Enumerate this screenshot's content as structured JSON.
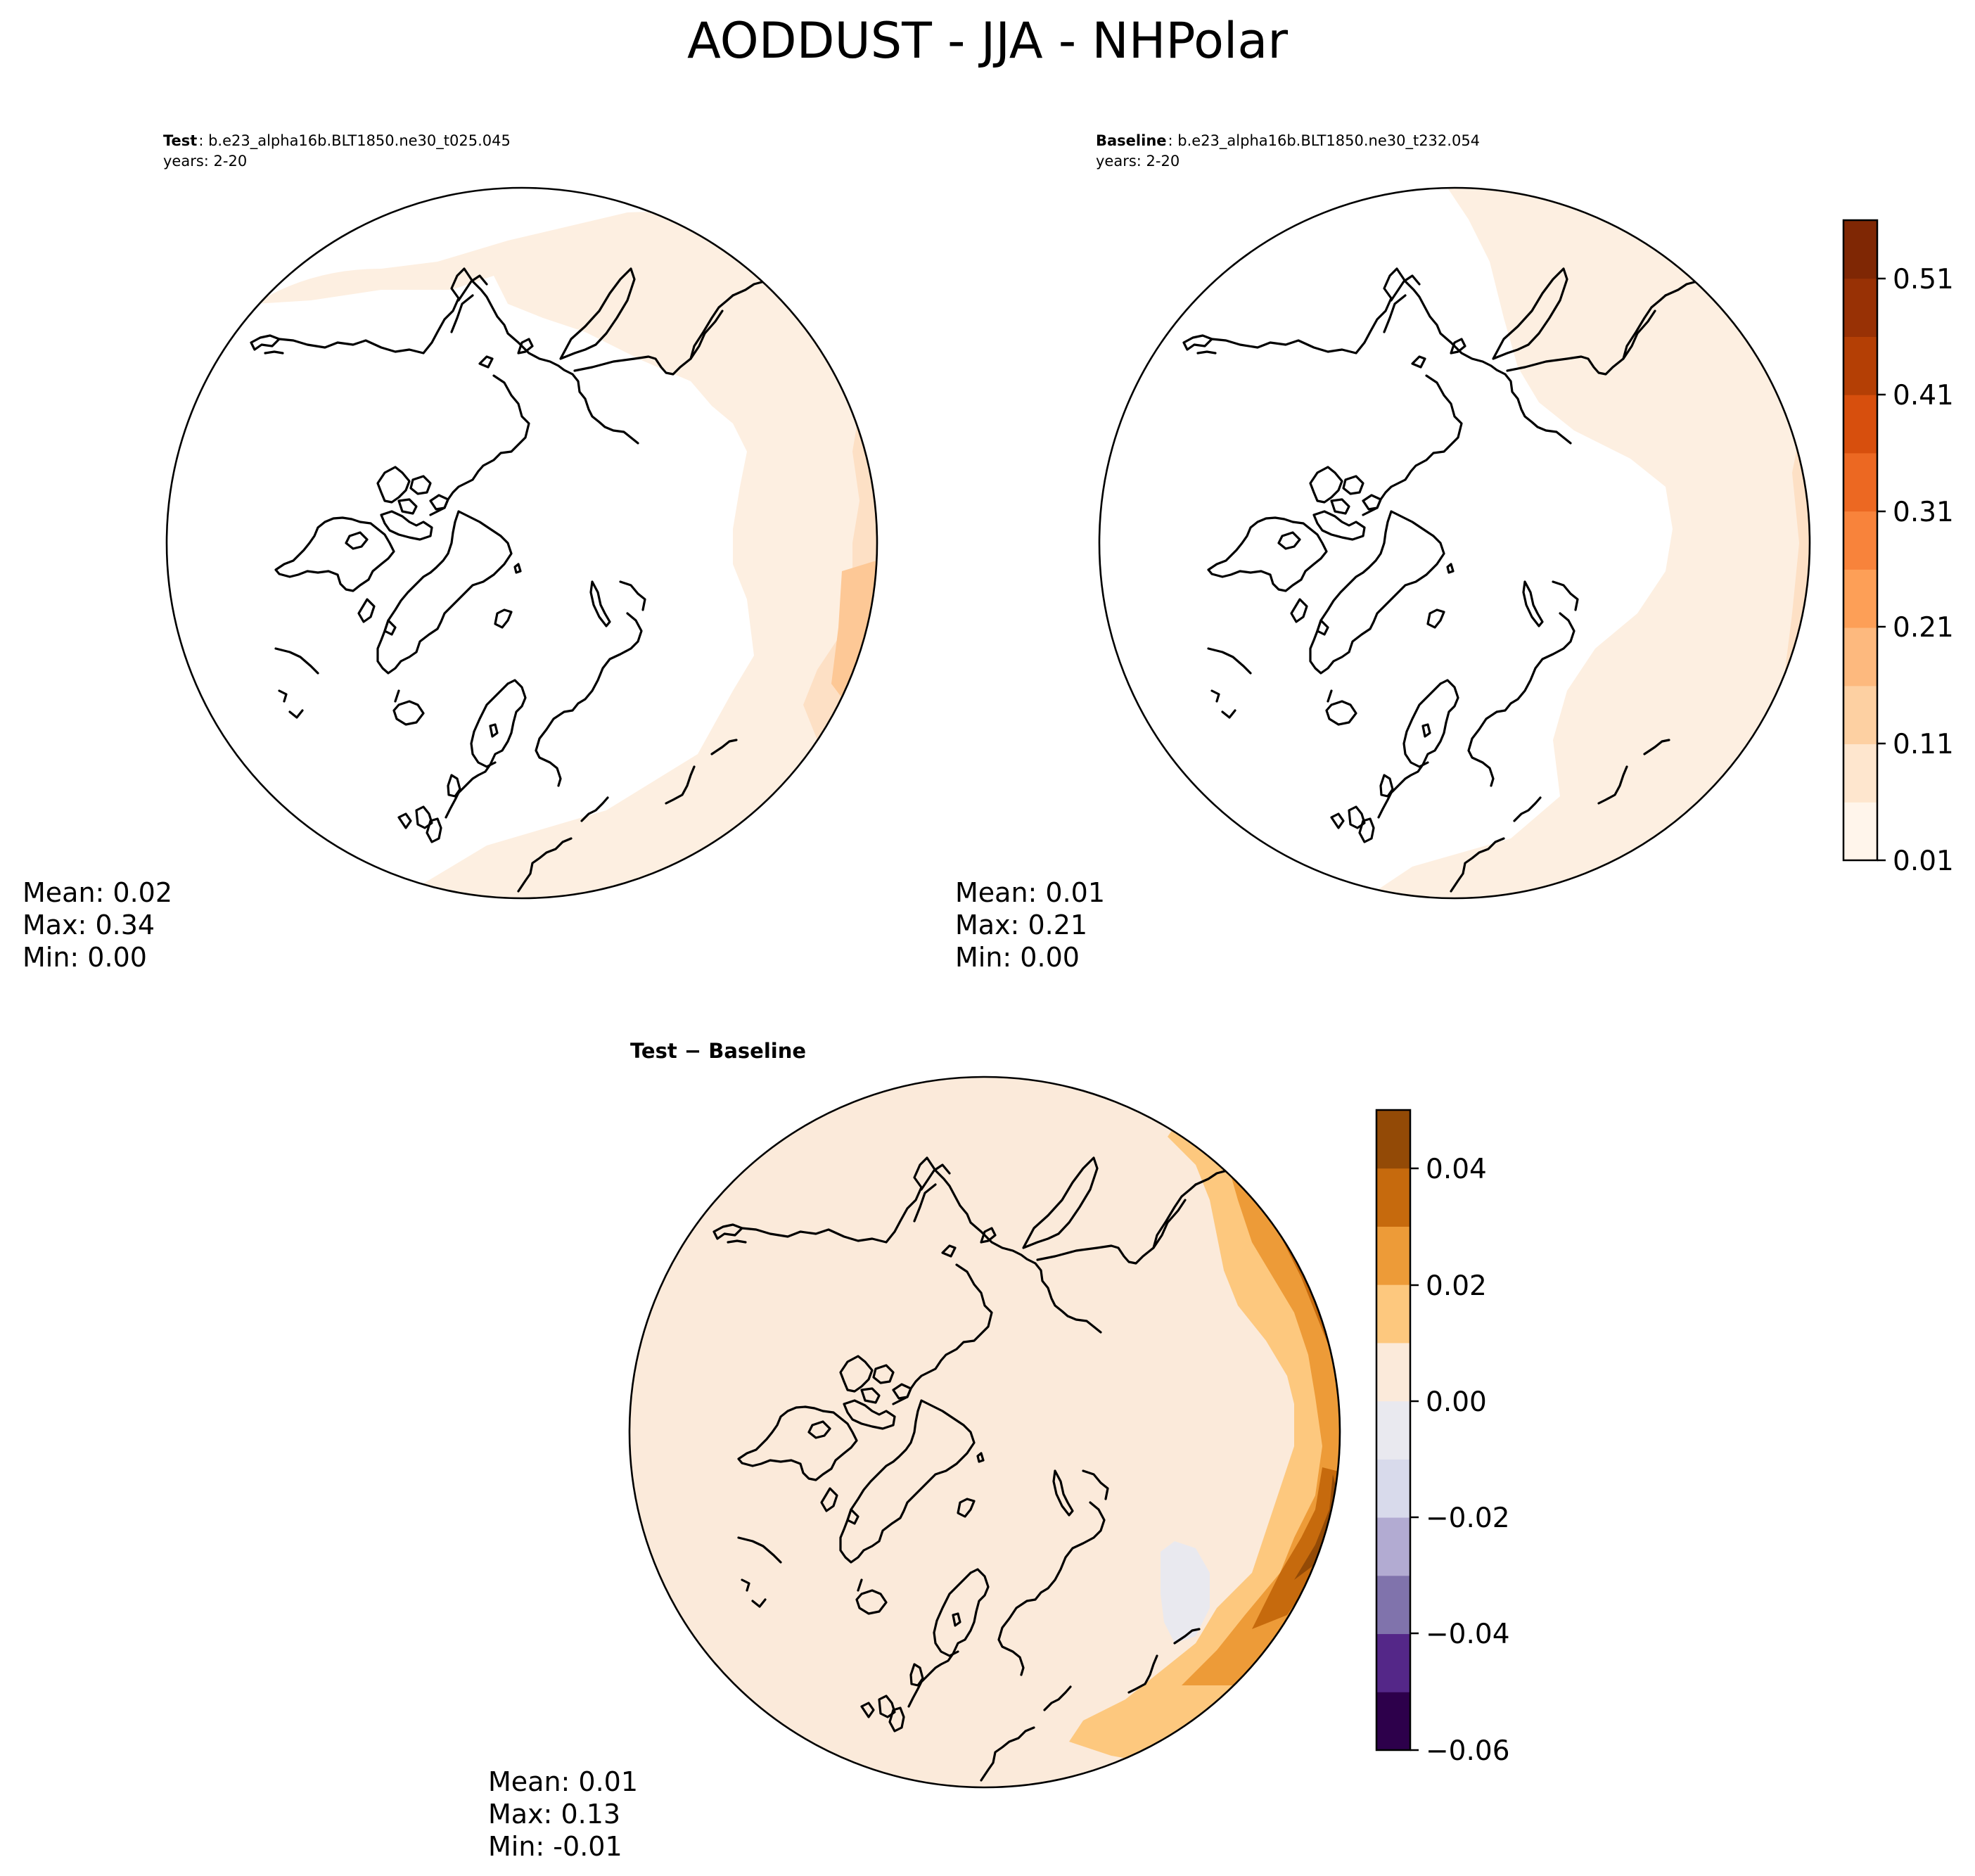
{
  "figure": {
    "title": "AODDUST - JJA - NHPolar"
  },
  "panels": {
    "test": {
      "header_bold": "Test",
      "header_text": ": b.e23_alpha16b.BLT1850.ne30_t025.045",
      "years": "years: 2-20",
      "mean": "Mean:  0.02",
      "max": "Max:  0.34",
      "min": "Min:  0.00"
    },
    "baseline": {
      "header_bold": "Baseline",
      "header_text": ": b.e23_alpha16b.BLT1850.ne30_t232.054",
      "years": "years: 2-20",
      "mean": "Mean:  0.01",
      "max": "Max:  0.21",
      "min": "Min:  0.00"
    },
    "diff": {
      "header": "Test − Baseline",
      "mean": "Mean:  0.01",
      "max": "Max:  0.13",
      "min": "Min: -0.01"
    }
  },
  "colorbars": {
    "main": {
      "ticks": [
        "0.01",
        "0.11",
        "0.21",
        "0.31",
        "0.41",
        "0.51"
      ],
      "colors": [
        "#fff5eb",
        "#fee6ce",
        "#fdd0a2",
        "#fdb97e",
        "#fd9f57",
        "#f8833b",
        "#ec6822",
        "#d74f0d",
        "#b43f05",
        "#983105",
        "#7f2704"
      ]
    },
    "diff": {
      "ticks": [
        "−0.06",
        "−0.04",
        "−0.02",
        "0.00",
        "0.02",
        "0.04"
      ],
      "colors": [
        "#2d004b",
        "#542788",
        "#8073ac",
        "#b2abd2",
        "#d8daeb",
        "#e9e9ef",
        "#fbeada",
        "#fdc87e",
        "#ed9b38",
        "#c66a0d",
        "#934a06"
      ]
    }
  },
  "chart_data": [
    {
      "type": "heatmap",
      "panel": "Test",
      "projection": "north polar stereographic",
      "variable": "AODDUST",
      "season": "JJA",
      "case": "b.e23_alpha16b.BLT1850.ne30_t025.045",
      "years": "2-20",
      "mean": 0.02,
      "max": 0.34,
      "min": 0.0,
      "levels": [
        0.01,
        0.06,
        0.11,
        0.16,
        0.21,
        0.26,
        0.31,
        0.36,
        0.41,
        0.46,
        0.51,
        0.56
      ]
    },
    {
      "type": "heatmap",
      "panel": "Baseline",
      "projection": "north polar stereographic",
      "variable": "AODDUST",
      "season": "JJA",
      "case": "b.e23_alpha16b.BLT1850.ne30_t232.054",
      "years": "2-20",
      "mean": 0.01,
      "max": 0.21,
      "min": 0.0,
      "levels": [
        0.01,
        0.06,
        0.11,
        0.16,
        0.21,
        0.26,
        0.31,
        0.36,
        0.41,
        0.46,
        0.51,
        0.56
      ]
    },
    {
      "type": "heatmap",
      "panel": "Test − Baseline",
      "projection": "north polar stereographic",
      "variable": "AODDUST",
      "season": "JJA",
      "mean": 0.01,
      "max": 0.13,
      "min": -0.01,
      "levels": [
        -0.06,
        -0.05,
        -0.04,
        -0.03,
        -0.02,
        -0.01,
        0.0,
        0.01,
        0.02,
        0.03,
        0.04,
        0.05
      ]
    }
  ]
}
